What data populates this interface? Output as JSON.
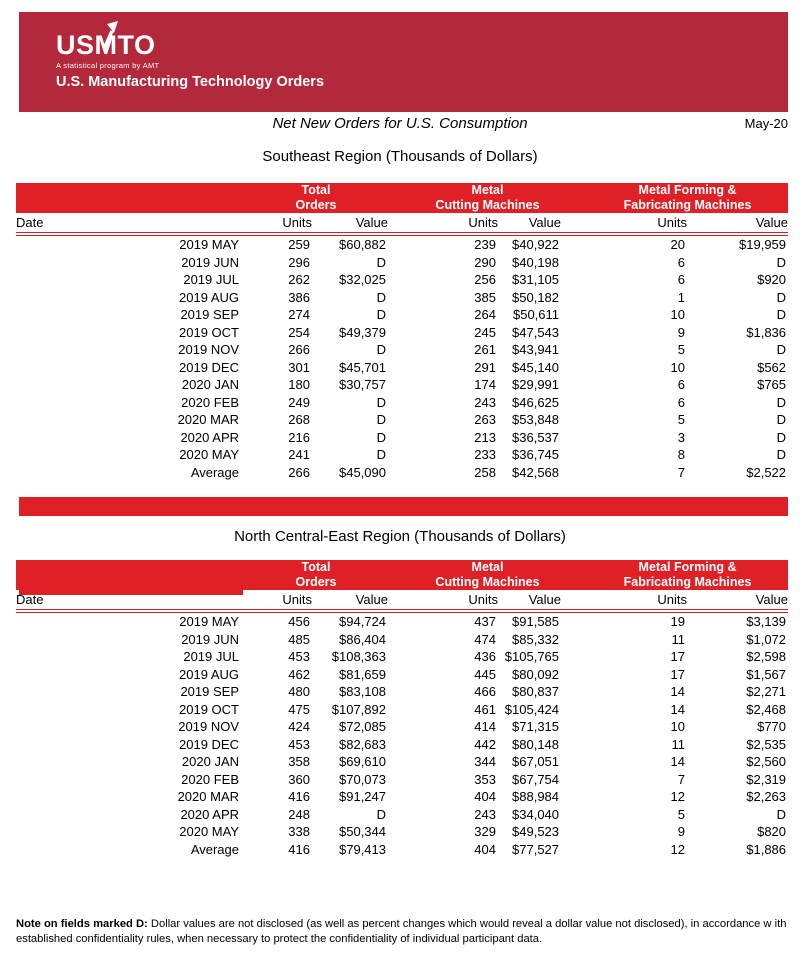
{
  "colors": {
    "banner_red": "#B3283A",
    "band_red": "#DF2127",
    "rule_red": "#CE2029"
  },
  "header": {
    "logo": "USMTO",
    "logo_tagline": "A statistical program by AMT",
    "program_name": "U.S. Manufacturing Technology Orders"
  },
  "report": {
    "title": "Net New Orders for U.S. Consumption",
    "period": "May-20"
  },
  "column_labels": {
    "date": "Date",
    "units": "Units",
    "value": "Value"
  },
  "column_groups": [
    {
      "line1": "Total",
      "line2": "Orders"
    },
    {
      "line1": "Metal",
      "line2": "Cutting Machines"
    },
    {
      "line1": "Metal Forming &",
      "line2": "Fabricating Machines"
    }
  ],
  "tables": [
    {
      "title": "Southeast Region (Thousands of Dollars)",
      "rows": [
        [
          "2019 MAY",
          "259",
          "$60,882",
          "239",
          "$40,922",
          "20",
          "$19,959"
        ],
        [
          "2019 JUN",
          "296",
          "D",
          "290",
          "$40,198",
          "6",
          "D"
        ],
        [
          "2019 JUL",
          "262",
          "$32,025",
          "256",
          "$31,105",
          "6",
          "$920"
        ],
        [
          "2019 AUG",
          "386",
          "D",
          "385",
          "$50,182",
          "1",
          "D"
        ],
        [
          "2019 SEP",
          "274",
          "D",
          "264",
          "$50,611",
          "10",
          "D"
        ],
        [
          "2019 OCT",
          "254",
          "$49,379",
          "245",
          "$47,543",
          "9",
          "$1,836"
        ],
        [
          "2019 NOV",
          "266",
          "D",
          "261",
          "$43,941",
          "5",
          "D"
        ],
        [
          "2019 DEC",
          "301",
          "$45,701",
          "291",
          "$45,140",
          "10",
          "$562"
        ],
        [
          "2020 JAN",
          "180",
          "$30,757",
          "174",
          "$29,991",
          "6",
          "$765"
        ],
        [
          "2020 FEB",
          "249",
          "D",
          "243",
          "$46,625",
          "6",
          "D"
        ],
        [
          "2020 MAR",
          "268",
          "D",
          "263",
          "$53,848",
          "5",
          "D"
        ],
        [
          "2020 APR",
          "216",
          "D",
          "213",
          "$36,537",
          "3",
          "D"
        ],
        [
          "2020 MAY",
          "241",
          "D",
          "233",
          "$36,745",
          "8",
          "D"
        ],
        [
          "Average",
          "266",
          "$45,090",
          "258",
          "$42,568",
          "7",
          "$2,522"
        ]
      ]
    },
    {
      "title": "North Central-East Region (Thousands of Dollars)",
      "rows": [
        [
          "2019 MAY",
          "456",
          "$94,724",
          "437",
          "$91,585",
          "19",
          "$3,139"
        ],
        [
          "2019 JUN",
          "485",
          "$86,404",
          "474",
          "$85,332",
          "11",
          "$1,072"
        ],
        [
          "2019 JUL",
          "453",
          "$108,363",
          "436",
          "$105,765",
          "17",
          "$2,598"
        ],
        [
          "2019 AUG",
          "462",
          "$81,659",
          "445",
          "$80,092",
          "17",
          "$1,567"
        ],
        [
          "2019 SEP",
          "480",
          "$83,108",
          "466",
          "$80,837",
          "14",
          "$2,271"
        ],
        [
          "2019 OCT",
          "475",
          "$107,892",
          "461",
          "$105,424",
          "14",
          "$2,468"
        ],
        [
          "2019 NOV",
          "424",
          "$72,085",
          "414",
          "$71,315",
          "10",
          "$770"
        ],
        [
          "2019 DEC",
          "453",
          "$82,683",
          "442",
          "$80,148",
          "11",
          "$2,535"
        ],
        [
          "2020 JAN",
          "358",
          "$69,610",
          "344",
          "$67,051",
          "14",
          "$2,560"
        ],
        [
          "2020 FEB",
          "360",
          "$70,073",
          "353",
          "$67,754",
          "7",
          "$2,319"
        ],
        [
          "2020 MAR",
          "416",
          "$91,247",
          "404",
          "$88,984",
          "12",
          "$2,263"
        ],
        [
          "2020 APR",
          "248",
          "D",
          "243",
          "$34,040",
          "5",
          "D"
        ],
        [
          "2020 MAY",
          "338",
          "$50,344",
          "329",
          "$49,523",
          "9",
          "$820"
        ],
        [
          "Average",
          "416",
          "$79,413",
          "404",
          "$77,527",
          "12",
          "$1,886"
        ]
      ]
    }
  ],
  "note": {
    "label": "Note on fields marked D:",
    "line1": " Dollar values are not disclosed (as well as percent changes which would reveal a dollar value not disclosed), in accordance w ith",
    "line2": "established confidentiality rules, when necessary to protect the confidentiality of individual participant data."
  }
}
